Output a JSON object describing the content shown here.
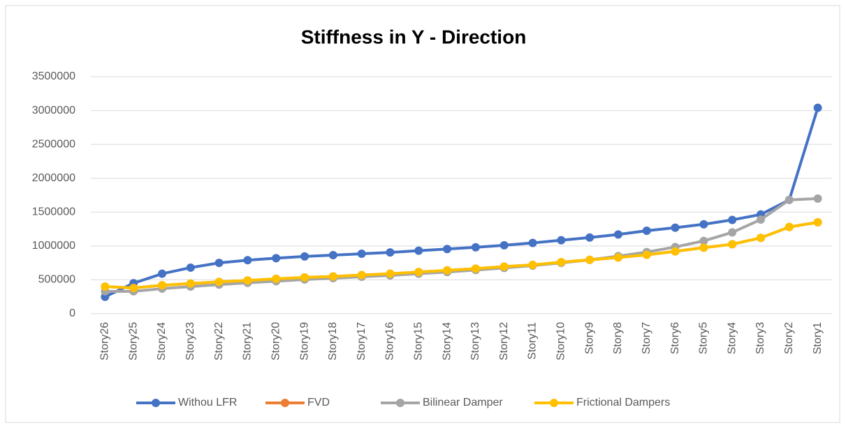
{
  "chart_data": {
    "type": "line",
    "title": "Stiffness in Y - Direction",
    "categories": [
      "Story26",
      "Story25",
      "Story24",
      "Story23",
      "Story22",
      "Story21",
      "Story20",
      "Story19",
      "Story18",
      "Story17",
      "Story16",
      "Story15",
      "Story14",
      "Story13",
      "Story12",
      "Story11",
      "Story10",
      "Story9",
      "Story8",
      "Story7",
      "Story6",
      "Story5",
      "Story4",
      "Story3",
      "Story2",
      "Story1"
    ],
    "series": [
      {
        "name": "Withou LFR",
        "color": "#4472c4",
        "values": [
          250000,
          450000,
          590000,
          680000,
          750000,
          790000,
          820000,
          845000,
          865000,
          885000,
          905000,
          930000,
          955000,
          980000,
          1010000,
          1045000,
          1085000,
          1125000,
          1170000,
          1225000,
          1270000,
          1320000,
          1385000,
          1465000,
          1680000,
          3040000
        ]
      },
      {
        "name": "FVD",
        "color": "#ed7d31",
        "values": [
          400000,
          380000,
          420000,
          445000,
          470000,
          490000,
          515000,
          535000,
          550000,
          570000,
          590000,
          615000,
          640000,
          665000,
          695000,
          720000,
          760000,
          795000,
          830000,
          870000,
          920000,
          975000,
          1025000,
          1120000,
          1280000,
          1350000
        ]
      },
      {
        "name": "Bilinear Damper",
        "color": "#a5a5a5",
        "values": [
          330000,
          330000,
          370000,
          400000,
          430000,
          455000,
          480000,
          505000,
          525000,
          545000,
          565000,
          590000,
          615000,
          645000,
          675000,
          710000,
          750000,
          795000,
          850000,
          910000,
          985000,
          1075000,
          1200000,
          1390000,
          1680000,
          1700000
        ]
      },
      {
        "name": "Frictional Dampers",
        "color": "#ffc000",
        "values": [
          400000,
          380000,
          420000,
          445000,
          470000,
          490000,
          515000,
          535000,
          550000,
          570000,
          590000,
          615000,
          640000,
          665000,
          695000,
          720000,
          760000,
          795000,
          830000,
          870000,
          920000,
          975000,
          1025000,
          1120000,
          1280000,
          1350000
        ]
      }
    ],
    "ylim": [
      0,
      3500000
    ],
    "yticks": [
      0,
      500000,
      1000000,
      1500000,
      2000000,
      2500000,
      3000000,
      3500000
    ],
    "grid": true,
    "legend": "bottom"
  }
}
